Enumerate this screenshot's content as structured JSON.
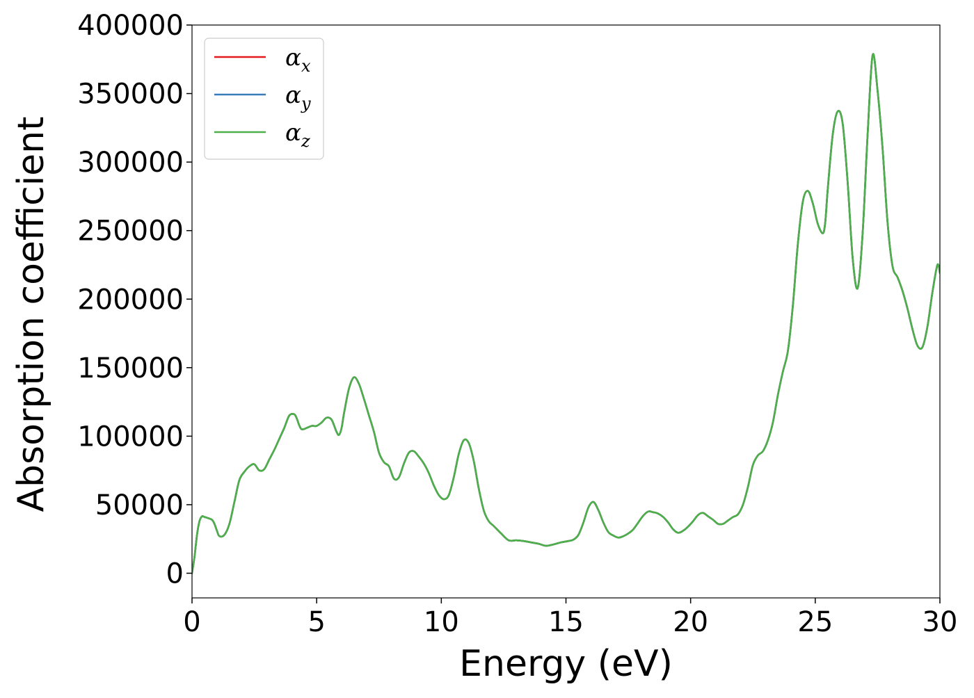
{
  "chart_data": {
    "type": "line",
    "xlabel": "Energy (eV)",
    "ylabel": "Absorption coefficient",
    "xlim": [
      0,
      30
    ],
    "ylim": [
      -18000,
      400000
    ],
    "xticks": [
      0,
      5,
      10,
      15,
      20,
      25,
      30
    ],
    "xtick_labels": [
      "0",
      "5",
      "10",
      "15",
      "20",
      "25",
      "30"
    ],
    "yticks": [
      0,
      50000,
      100000,
      150000,
      200000,
      250000,
      300000,
      350000,
      400000
    ],
    "ytick_labels": [
      "0",
      "50000",
      "100000",
      "150000",
      "200000",
      "250000",
      "300000",
      "350000",
      "400000"
    ],
    "grid": false,
    "legend_position": "top-left",
    "x": [
      0,
      0.1,
      0.2,
      0.3,
      0.4,
      0.5,
      0.6,
      0.8,
      0.9,
      1.0,
      1.1,
      1.3,
      1.5,
      1.7,
      1.9,
      2.1,
      2.3,
      2.5,
      2.7,
      2.9,
      3.1,
      3.3,
      3.5,
      3.7,
      3.9,
      4.1,
      4.2,
      4.3,
      4.4,
      4.6,
      4.8,
      5.0,
      5.2,
      5.4,
      5.6,
      5.8,
      5.9,
      6.0,
      6.1,
      6.3,
      6.5,
      6.7,
      6.9,
      7.1,
      7.3,
      7.5,
      7.7,
      7.9,
      8.1,
      8.3,
      8.5,
      8.7,
      8.9,
      9.1,
      9.3,
      9.5,
      9.7,
      9.9,
      10.1,
      10.3,
      10.5,
      10.7,
      10.9,
      11.1,
      11.3,
      11.5,
      11.7,
      11.9,
      12.1,
      12.4,
      12.7,
      13.0,
      13.3,
      13.6,
      13.9,
      14.2,
      14.5,
      14.8,
      15.1,
      15.3,
      15.5,
      15.7,
      15.9,
      16.1,
      16.3,
      16.5,
      16.7,
      16.9,
      17.1,
      17.3,
      17.5,
      17.7,
      17.9,
      18.1,
      18.3,
      18.5,
      18.7,
      18.9,
      19.1,
      19.3,
      19.5,
      19.7,
      19.9,
      20.1,
      20.3,
      20.5,
      20.7,
      20.9,
      21.1,
      21.3,
      21.5,
      21.7,
      21.9,
      22.1,
      22.3,
      22.5,
      22.7,
      22.9,
      23.1,
      23.3,
      23.5,
      23.7,
      23.9,
      24.1,
      24.3,
      24.5,
      24.7,
      24.9,
      25.1,
      25.3,
      25.4,
      25.5,
      25.7,
      25.9,
      26.1,
      26.3,
      26.5,
      26.7,
      26.9,
      27.1,
      27.3,
      27.5,
      27.7,
      27.9,
      28.1,
      28.3,
      28.5,
      28.7,
      28.9,
      29.1,
      29.3,
      29.5,
      29.7,
      29.9,
      30.0
    ],
    "series": [
      {
        "name": "α_x",
        "color": "#e41a1c",
        "values": [
          0,
          12000,
          28000,
          38000,
          41500,
          41000,
          40500,
          39000,
          36000,
          31000,
          27000,
          28000,
          36000,
          52000,
          68000,
          74000,
          78000,
          79500,
          75000,
          76000,
          83000,
          90000,
          98000,
          106000,
          115000,
          116000,
          113000,
          108000,
          105000,
          106000,
          107500,
          107500,
          110000,
          113500,
          112000,
          103000,
          101000,
          106000,
          117000,
          135000,
          143000,
          138000,
          127000,
          115000,
          103000,
          88000,
          81000,
          78000,
          69000,
          70000,
          80000,
          88000,
          89000,
          85000,
          80000,
          73000,
          64000,
          57000,
          54000,
          57000,
          70000,
          87000,
          97000,
          95000,
          82000,
          62000,
          46000,
          38000,
          34500,
          29000,
          24000,
          24000,
          23500,
          22500,
          21500,
          20000,
          21000,
          22500,
          23500,
          24500,
          28000,
          37000,
          48000,
          52000,
          46000,
          37000,
          30000,
          27500,
          26000,
          27000,
          29000,
          32000,
          37000,
          42000,
          45000,
          44500,
          43500,
          41000,
          37000,
          32000,
          29500,
          31000,
          34000,
          38000,
          42500,
          44000,
          41500,
          39000,
          36000,
          36000,
          38500,
          41000,
          43000,
          50000,
          63000,
          79000,
          86000,
          89000,
          97000,
          110000,
          130000,
          147000,
          162000,
          195000,
          240000,
          271000,
          279000,
          270000,
          255000,
          248000,
          256000,
          280000,
          320000,
          337000,
          328000,
          285000,
          230000,
          208000,
          248000,
          320000,
          378000,
          352000,
          310000,
          256000,
          224000,
          216000,
          206000,
          193000,
          178000,
          166000,
          165000,
          180000,
          205000,
          225000,
          219000
        ]
      },
      {
        "name": "α_y",
        "color": "#377eb8",
        "values": [
          0,
          12000,
          28000,
          38000,
          41500,
          41000,
          40500,
          39000,
          36000,
          31000,
          27000,
          28000,
          36000,
          52000,
          68000,
          74000,
          78000,
          79500,
          75000,
          76000,
          83000,
          90000,
          98000,
          106000,
          115000,
          116000,
          113000,
          108000,
          105000,
          106000,
          107500,
          107500,
          110000,
          113500,
          112000,
          103000,
          101000,
          106000,
          117000,
          135000,
          143000,
          138000,
          127000,
          115000,
          103000,
          88000,
          81000,
          78000,
          69000,
          70000,
          80000,
          88000,
          89000,
          85000,
          80000,
          73000,
          64000,
          57000,
          54000,
          57000,
          70000,
          87000,
          97000,
          95000,
          82000,
          62000,
          46000,
          38000,
          34500,
          29000,
          24000,
          24000,
          23500,
          22500,
          21500,
          20000,
          21000,
          22500,
          23500,
          24500,
          28000,
          37000,
          48000,
          52000,
          46000,
          37000,
          30000,
          27500,
          26000,
          27000,
          29000,
          32000,
          37000,
          42000,
          45000,
          44500,
          43500,
          41000,
          37000,
          32000,
          29500,
          31000,
          34000,
          38000,
          42500,
          44000,
          41500,
          39000,
          36000,
          36000,
          38500,
          41000,
          43000,
          50000,
          63000,
          79000,
          86000,
          89000,
          97000,
          110000,
          130000,
          147000,
          162000,
          195000,
          240000,
          271000,
          279000,
          270000,
          255000,
          248000,
          256000,
          280000,
          320000,
          337000,
          328000,
          285000,
          230000,
          208000,
          248000,
          320000,
          378000,
          352000,
          310000,
          256000,
          224000,
          216000,
          206000,
          193000,
          178000,
          166000,
          165000,
          180000,
          205000,
          225000,
          219000
        ]
      },
      {
        "name": "α_z",
        "color": "#4daf4a",
        "values": [
          0,
          12000,
          28000,
          38000,
          41500,
          41000,
          40500,
          39000,
          36000,
          31000,
          27000,
          28000,
          36000,
          52000,
          68000,
          74000,
          78000,
          79500,
          75000,
          76000,
          83000,
          90000,
          98000,
          106000,
          115000,
          116000,
          113000,
          108000,
          105000,
          106000,
          107500,
          107500,
          110000,
          113500,
          112000,
          103000,
          101000,
          106000,
          117000,
          135000,
          143000,
          138000,
          127000,
          115000,
          103000,
          88000,
          81000,
          78000,
          69000,
          70000,
          80000,
          88000,
          89000,
          85000,
          80000,
          73000,
          64000,
          57000,
          54000,
          57000,
          70000,
          87000,
          97000,
          95000,
          82000,
          62000,
          46000,
          38000,
          34500,
          29000,
          24000,
          24000,
          23500,
          22500,
          21500,
          20000,
          21000,
          22500,
          23500,
          24500,
          28000,
          37000,
          48000,
          52000,
          46000,
          37000,
          30000,
          27500,
          26000,
          27000,
          29000,
          32000,
          37000,
          42000,
          45000,
          44500,
          43500,
          41000,
          37000,
          32000,
          29500,
          31000,
          34000,
          38000,
          42500,
          44000,
          41500,
          39000,
          36000,
          36000,
          38500,
          41000,
          43000,
          50000,
          63000,
          79000,
          86000,
          89000,
          97000,
          110000,
          130000,
          147000,
          162000,
          195000,
          240000,
          271000,
          279000,
          270000,
          255000,
          248000,
          256000,
          280000,
          320000,
          337000,
          328000,
          285000,
          230000,
          208000,
          248000,
          320000,
          378000,
          352000,
          310000,
          256000,
          224000,
          216000,
          206000,
          193000,
          178000,
          166000,
          165000,
          180000,
          205000,
          225000,
          219000
        ]
      }
    ]
  },
  "legend": {
    "items": [
      {
        "symbol": "α",
        "subscript": "x",
        "color": "#e41a1c"
      },
      {
        "symbol": "α",
        "subscript": "y",
        "color": "#377eb8"
      },
      {
        "symbol": "α",
        "subscript": "z",
        "color": "#4daf4a"
      }
    ]
  }
}
